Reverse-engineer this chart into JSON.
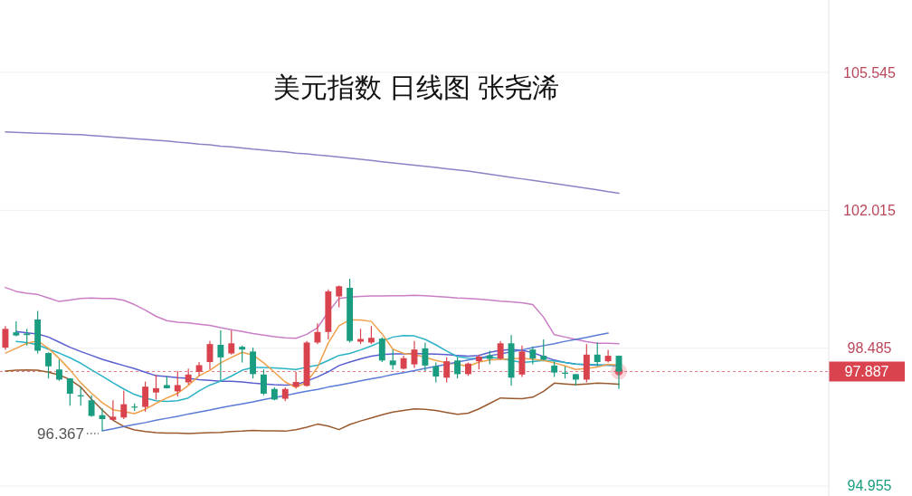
{
  "chart_data": {
    "type": "candlestick",
    "title": "美元指数 日线图 张尧浠",
    "categories": [
      null,
      null,
      null,
      null,
      null,
      null,
      null,
      null,
      null,
      null,
      null,
      null,
      null,
      null,
      null,
      null,
      null,
      null,
      null,
      null,
      null,
      null,
      null,
      null,
      null,
      null,
      null,
      null,
      null,
      null,
      null,
      null,
      null,
      null,
      null,
      null,
      null,
      null,
      null,
      null,
      null,
      null,
      null,
      null,
      null,
      null,
      null,
      null,
      null,
      null,
      null,
      null,
      null,
      null,
      null,
      null,
      null,
      null,
      null,
      null,
      null,
      null,
      null,
      null,
      null,
      null,
      null,
      null,
      null,
      null,
      null,
      null,
      null,
      null,
      null,
      null,
      null
    ],
    "ohlc": [
      [
        98.5,
        99.05,
        98.44,
        98.98
      ],
      [
        98.89,
        99.17,
        98.79,
        98.81
      ],
      [
        98.86,
        98.98,
        98.55,
        98.82
      ],
      [
        99.22,
        99.44,
        98.35,
        98.42
      ],
      [
        98.36,
        98.38,
        97.71,
        98.02
      ],
      [
        97.94,
        98.19,
        97.65,
        97.68
      ],
      [
        97.71,
        97.72,
        97.01,
        97.32
      ],
      [
        97.28,
        97.49,
        97.01,
        97.25
      ],
      [
        97.15,
        97.28,
        96.73,
        96.75
      ],
      [
        96.77,
        96.94,
        96.367,
        96.67
      ],
      [
        96.65,
        97.15,
        96.64,
        96.73
      ],
      [
        96.71,
        97.4,
        96.67,
        97.05
      ],
      [
        96.99,
        97.07,
        96.88,
        96.97
      ],
      [
        96.98,
        97.63,
        96.86,
        97.5
      ],
      [
        97.35,
        97.81,
        97.17,
        97.46
      ],
      [
        97.54,
        97.76,
        97.45,
        97.46
      ],
      [
        97.38,
        97.9,
        97.25,
        97.54
      ],
      [
        97.61,
        97.96,
        97.55,
        97.81
      ],
      [
        97.88,
        98.13,
        97.77,
        98.05
      ],
      [
        98.13,
        98.67,
        97.94,
        98.59
      ],
      [
        98.57,
        98.94,
        97.65,
        98.25
      ],
      [
        98.35,
        98.94,
        98.32,
        98.61
      ],
      [
        98.52,
        98.55,
        98.12,
        98.45
      ],
      [
        98.4,
        98.5,
        97.71,
        97.82
      ],
      [
        97.81,
        97.94,
        97.28,
        97.32
      ],
      [
        97.44,
        97.48,
        97.15,
        97.17
      ],
      [
        97.19,
        97.48,
        97.13,
        97.44
      ],
      [
        97.5,
        97.88,
        97.45,
        97.62
      ],
      [
        97.52,
        98.67,
        97.5,
        98.63
      ],
      [
        98.63,
        99.12,
        98.59,
        98.9
      ],
      [
        98.9,
        99.99,
        98.71,
        99.94
      ],
      [
        99.81,
        100.09,
        99.53,
        100.07
      ],
      [
        100.03,
        100.26,
        98.63,
        98.67
      ],
      [
        98.65,
        98.98,
        98.59,
        98.72
      ],
      [
        98.63,
        99.05,
        98.59,
        98.75
      ],
      [
        98.73,
        98.76,
        98.13,
        98.17
      ],
      [
        98.17,
        98.45,
        97.94,
        98.05
      ],
      [
        97.96,
        98.29,
        97.94,
        98.23
      ],
      [
        98.07,
        98.67,
        97.98,
        98.45
      ],
      [
        98.48,
        98.63,
        97.9,
        98.04
      ],
      [
        98.02,
        98.12,
        97.61,
        97.76
      ],
      [
        97.73,
        98.25,
        97.61,
        98.15
      ],
      [
        98.17,
        98.25,
        97.71,
        97.82
      ],
      [
        97.82,
        98.12,
        97.78,
        98.09
      ],
      [
        98.15,
        98.32,
        97.94,
        98.27
      ],
      [
        98.3,
        98.42,
        98.07,
        98.21
      ],
      [
        98.22,
        98.67,
        98.19,
        98.61
      ],
      [
        98.61,
        98.82,
        97.53,
        97.73
      ],
      [
        97.81,
        98.55,
        97.75,
        98.4
      ],
      [
        98.45,
        98.53,
        98.07,
        98.22
      ],
      [
        98.29,
        98.71,
        98.17,
        98.19
      ],
      [
        98.04,
        98.15,
        97.75,
        97.86
      ],
      [
        97.86,
        98.02,
        97.71,
        97.83
      ],
      [
        97.82,
        97.83,
        97.53,
        97.68
      ],
      [
        97.68,
        98.59,
        97.61,
        98.32
      ],
      [
        98.32,
        98.63,
        98.02,
        98.13
      ],
      [
        98.15,
        98.44,
        98.12,
        98.29
      ],
      [
        98.29,
        98.3,
        97.44,
        97.887
      ],
      null,
      null,
      null,
      null,
      null,
      null,
      null,
      null,
      null,
      null,
      null,
      null,
      null,
      null,
      null,
      null,
      null,
      null,
      null
    ],
    "colors": [
      "#d9434e",
      "#1a9c80",
      "#1a9c80",
      "#1a9c80",
      "#1a9c80",
      "#1a9c80",
      "#1a9c80",
      "#1a9c80",
      "#1a9c80",
      "#1a9c80",
      "#d9434e",
      "#d9434e",
      "#1a9c80",
      "#d9434e",
      "#d9434e",
      "#1a9c80",
      "#d9434e",
      "#d9434e",
      "#d9434e",
      "#d9434e",
      "#1a9c80",
      "#d9434e",
      "#1a9c80",
      "#1a9c80",
      "#1a9c80",
      "#1a9c80",
      "#d9434e",
      "#d9434e",
      "#d9434e",
      "#d9434e",
      "#d9434e",
      "#d9434e",
      "#1a9c80",
      "#d9434e",
      "#d9434e",
      "#1a9c80",
      "#1a9c80",
      "#d9434e",
      "#d9434e",
      "#1a9c80",
      "#1a9c80",
      "#d9434e",
      "#1a9c80",
      "#d9434e",
      "#d9434e",
      "#1a9c80",
      "#d9434e",
      "#1a9c80",
      "#d9434e",
      "#1a9c80",
      "#1a9c80",
      "#1a9c80",
      "#1a9c80",
      "#1a9c80",
      "#d9434e",
      "#1a9c80",
      "#d9434e",
      "#1a9c80",
      null,
      null,
      null,
      null,
      null,
      null,
      null,
      null,
      null,
      null,
      null,
      null,
      null,
      null,
      null,
      null,
      null,
      null,
      null
    ],
    "series": [
      {
        "type": "line",
        "color": "#8a84c6",
        "values": [
          104.02,
          104.01,
          104.0,
          103.99,
          103.98,
          103.97,
          103.96,
          103.95,
          103.93,
          103.91,
          103.89,
          103.87,
          103.85,
          103.83,
          103.81,
          103.79,
          103.76,
          103.74,
          103.71,
          103.69,
          103.66,
          103.64,
          103.61,
          103.58,
          103.56,
          103.53,
          103.51,
          103.48,
          103.46,
          103.43,
          103.41,
          103.38,
          103.35,
          103.32,
          103.29,
          103.26,
          103.23,
          103.2,
          103.17,
          103.14,
          103.11,
          103.08,
          103.05,
          103.02,
          102.98,
          102.94,
          102.9,
          102.86,
          102.82,
          102.78,
          102.74,
          102.7,
          102.66,
          102.62,
          102.58,
          102.54,
          102.49,
          102.45,
          null,
          null,
          null,
          null,
          null,
          null,
          null,
          null,
          null,
          null,
          null,
          null,
          null,
          null,
          null,
          null,
          null,
          null,
          null
        ]
      },
      {
        "type": "line",
        "color": "#c97ec6",
        "values": [
          100.04,
          99.94,
          99.89,
          99.86,
          99.77,
          99.68,
          99.72,
          99.76,
          99.77,
          99.76,
          99.76,
          99.71,
          99.6,
          99.46,
          99.3,
          99.19,
          99.15,
          99.13,
          99.1,
          99.07,
          99.01,
          98.96,
          98.91,
          98.86,
          98.82,
          98.78,
          98.75,
          98.74,
          98.84,
          99.01,
          99.41,
          99.76,
          99.79,
          99.81,
          99.82,
          99.82,
          99.83,
          99.83,
          99.84,
          99.83,
          99.81,
          99.79,
          99.77,
          99.76,
          99.74,
          99.72,
          99.69,
          99.67,
          99.65,
          99.6,
          99.28,
          98.83,
          98.77,
          98.71,
          98.65,
          98.61,
          98.61,
          98.6,
          null,
          null,
          null,
          null,
          null,
          null,
          null,
          null,
          null,
          null,
          null,
          null,
          null,
          null,
          null,
          null,
          null,
          null,
          null
        ]
      },
      {
        "type": "line",
        "color": "#9b5a2e",
        "values": [
          97.9,
          97.92,
          97.93,
          97.92,
          97.87,
          97.8,
          97.68,
          97.49,
          97.18,
          96.9,
          96.64,
          96.48,
          96.39,
          96.35,
          96.32,
          96.31,
          96.31,
          96.3,
          96.31,
          96.32,
          96.33,
          96.35,
          96.36,
          96.38,
          96.37,
          96.37,
          96.36,
          96.4,
          96.46,
          96.54,
          96.49,
          96.4,
          96.53,
          96.62,
          96.7,
          96.78,
          96.85,
          96.89,
          96.93,
          96.92,
          96.89,
          96.84,
          96.79,
          96.82,
          96.93,
          97.07,
          97.21,
          97.2,
          97.19,
          97.23,
          97.38,
          97.59,
          97.57,
          97.55,
          97.57,
          97.59,
          97.58,
          97.56,
          null,
          null,
          null,
          null,
          null,
          null,
          null,
          null,
          null,
          null,
          null,
          null,
          null,
          null,
          null,
          null,
          null,
          null,
          null
        ]
      },
      {
        "type": "line",
        "color": "#5a5fcf",
        "values": [
          null,
          98.91,
          98.88,
          98.85,
          98.77,
          98.64,
          98.51,
          98.4,
          98.3,
          98.2,
          98.12,
          98.04,
          97.96,
          97.87,
          97.78,
          97.76,
          97.73,
          97.71,
          97.68,
          97.66,
          97.64,
          97.64,
          97.62,
          97.59,
          97.57,
          97.55,
          97.54,
          97.55,
          97.64,
          97.75,
          97.88,
          98.04,
          98.13,
          98.21,
          98.28,
          98.32,
          98.34,
          98.34,
          98.35,
          98.34,
          98.33,
          98.32,
          98.3,
          98.28,
          98.3,
          98.38,
          98.43,
          98.45,
          98.43,
          98.37,
          98.27,
          98.18,
          98.12,
          98.08,
          98.06,
          98.05,
          98.05,
          98.04,
          null,
          null,
          null,
          null,
          null,
          null,
          null,
          null,
          null,
          null,
          null,
          null,
          null,
          null,
          null,
          null,
          null,
          null,
          null
        ]
      },
      {
        "type": "line",
        "color": "#2ab3c6",
        "values": [
          null,
          98.66,
          98.63,
          98.57,
          98.46,
          98.36,
          98.24,
          98.1,
          97.93,
          97.77,
          97.6,
          97.44,
          97.3,
          97.21,
          97.14,
          97.12,
          97.14,
          97.21,
          97.39,
          97.54,
          97.64,
          97.77,
          97.92,
          97.99,
          97.99,
          97.98,
          97.96,
          97.94,
          98.0,
          98.05,
          98.17,
          98.3,
          98.35,
          98.44,
          98.54,
          98.66,
          98.77,
          98.81,
          98.8,
          98.71,
          98.57,
          98.41,
          98.27,
          98.23,
          98.22,
          98.25,
          98.22,
          98.17,
          98.12,
          98.14,
          98.17,
          98.16,
          98.12,
          98.08,
          98.07,
          98.06,
          98.05,
          98.04,
          null,
          null,
          null,
          null,
          null,
          null,
          null,
          null,
          null,
          null,
          null,
          null,
          null,
          null,
          null,
          null,
          null,
          null,
          null
        ]
      },
      {
        "type": "line",
        "color": "#f0a04a",
        "values": [
          98.36,
          98.48,
          98.61,
          98.67,
          98.48,
          98.22,
          97.93,
          97.6,
          97.33,
          97.09,
          96.91,
          96.86,
          96.81,
          96.92,
          97.07,
          97.21,
          97.33,
          97.53,
          97.78,
          97.92,
          98.11,
          98.25,
          98.38,
          98.31,
          98.11,
          97.87,
          97.62,
          97.48,
          97.62,
          97.99,
          98.62,
          99.06,
          99.21,
          99.21,
          99.17,
          98.85,
          98.46,
          98.35,
          98.32,
          98.25,
          98.17,
          98.11,
          98.07,
          98.02,
          98.13,
          98.18,
          98.2,
          98.21,
          98.23,
          98.2,
          98.17,
          98.11,
          98.03,
          97.94,
          97.97,
          98.0,
          98.07,
          98.05,
          null,
          null,
          null,
          null,
          null,
          null,
          null,
          null,
          null,
          null,
          null,
          null,
          null,
          null,
          null,
          null,
          null,
          null,
          null
        ]
      },
      {
        "type": "line",
        "color": "#5a7bd6",
        "values": [
          null,
          null,
          null,
          null,
          null,
          null,
          null,
          null,
          null,
          96.37,
          96.42,
          96.48,
          96.53,
          96.58,
          96.64,
          96.69,
          96.74,
          96.8,
          96.85,
          96.9,
          96.96,
          97.01,
          97.06,
          97.11,
          97.17,
          97.22,
          97.27,
          97.33,
          97.38,
          97.43,
          97.49,
          97.54,
          97.59,
          97.65,
          97.7,
          97.75,
          97.81,
          97.86,
          97.91,
          97.97,
          98.02,
          98.07,
          98.13,
          98.18,
          98.23,
          98.29,
          98.34,
          98.39,
          98.44,
          98.5,
          98.55,
          98.6,
          98.66,
          98.71,
          98.76,
          98.82,
          98.87,
          null,
          null,
          null,
          null,
          null,
          null,
          null,
          null,
          null,
          null,
          null,
          null,
          null,
          null,
          null,
          null,
          null,
          null,
          null,
          null
        ]
      },
      {
        "type": "scatter",
        "marker": "circle",
        "color": "#e8566a",
        "values": [
          null,
          null,
          null,
          null,
          null,
          null,
          null,
          null,
          null,
          null,
          null,
          null,
          null,
          null,
          null,
          null,
          null,
          null,
          null,
          null,
          null,
          null,
          null,
          null,
          null,
          null,
          null,
          null,
          null,
          null,
          null,
          null,
          null,
          null,
          null,
          null,
          null,
          null,
          null,
          null,
          null,
          null,
          null,
          null,
          null,
          null,
          null,
          null,
          null,
          null,
          null,
          null,
          null,
          null,
          null,
          null,
          null,
          97.89,
          null,
          null,
          null,
          null,
          null,
          null,
          null,
          null,
          null,
          null,
          null,
          null,
          null,
          null,
          null,
          null,
          null,
          null,
          null
        ]
      }
    ],
    "ylim": [
      94.7,
      107.4
    ],
    "yticks": [
      94.955,
      98.485,
      102.015,
      105.545
    ],
    "grid": "y",
    "ref_lines": [
      {
        "axis": "y",
        "value": 97.887,
        "label": "97.887",
        "color": "#d9434e",
        "line_style": "dashed"
      }
    ],
    "annotations": [
      "96.367"
    ]
  }
}
